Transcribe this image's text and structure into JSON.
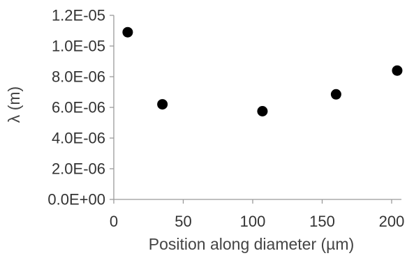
{
  "chart_data": {
    "type": "scatter",
    "title": "",
    "xlabel": "Position along diameter (µm)",
    "ylabel": "λ (m)",
    "xlim": [
      0,
      200
    ],
    "ylim": [
      0,
      1.2e-05
    ],
    "xticks": [
      0,
      50,
      100,
      150,
      200
    ],
    "xtick_labels": [
      "0",
      "50",
      "100",
      "150",
      "200"
    ],
    "yticks": [
      0,
      2e-06,
      4e-06,
      6e-06,
      8e-06,
      1e-05,
      1.2e-05
    ],
    "ytick_labels": [
      "0.0E+00",
      "2.0E-06",
      "4.0E-06",
      "6.0E-06",
      "8.0E-06",
      "1.0E-05",
      "1.2E-05"
    ],
    "grid": false,
    "legend": "none",
    "series": [
      {
        "color": "#000000",
        "x": [
          10,
          35,
          107,
          160,
          204
        ],
        "y": [
          1.09e-05,
          6.2e-06,
          5.75e-06,
          6.85e-06,
          8.4e-06
        ]
      }
    ]
  }
}
